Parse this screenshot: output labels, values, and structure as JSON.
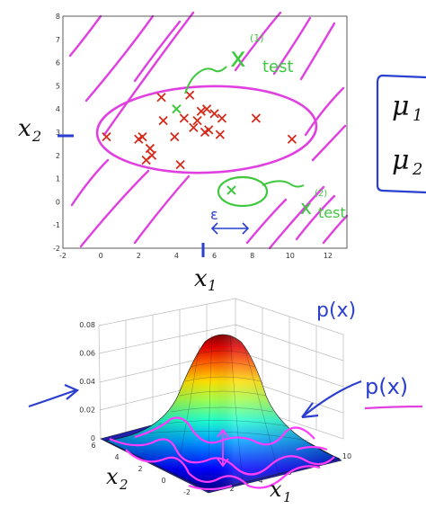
{
  "chart_data": [
    {
      "type": "scatter",
      "xlabel": "x",
      "xlabel_sub": "1",
      "ylabel": "x",
      "ylabel_sub": "2",
      "xlim": [
        -2,
        13
      ],
      "ylim": [
        -2,
        8
      ],
      "x_ticks": [
        -2,
        0,
        2,
        4,
        6,
        8,
        10,
        12
      ],
      "y_ticks": [
        -2,
        -1,
        0,
        1,
        2,
        3,
        4,
        5,
        6,
        7,
        8
      ],
      "grid": false,
      "series": [
        {
          "marker": "x",
          "color": "#d42a1a",
          "points": [
            [
              0.3,
              2.8
            ],
            [
              2.0,
              2.7
            ],
            [
              2.2,
              2.8
            ],
            [
              2.4,
              1.8
            ],
            [
              2.7,
              2.0
            ],
            [
              2.6,
              2.3
            ],
            [
              3.2,
              4.5
            ],
            [
              3.3,
              3.5
            ],
            [
              3.9,
              2.8
            ],
            [
              4.2,
              1.6
            ],
            [
              4.4,
              3.6
            ],
            [
              4.7,
              4.6
            ],
            [
              4.9,
              3.2
            ],
            [
              5.1,
              3.5
            ],
            [
              5.3,
              3.9
            ],
            [
              5.5,
              3.0
            ],
            [
              5.6,
              4.0
            ],
            [
              5.7,
              3.1
            ],
            [
              6.0,
              3.8
            ],
            [
              6.3,
              2.9
            ],
            [
              6.4,
              3.6
            ],
            [
              8.2,
              3.6
            ],
            [
              10.1,
              2.7
            ]
          ]
        },
        {
          "marker": "x",
          "color": "#3fc83f",
          "points": [
            [
              4.0,
              4.0
            ],
            [
              6.9,
              0.5
            ]
          ]
        }
      ],
      "annotations": [
        {
          "text": "x",
          "superscript": "(1)",
          "subscript": "test",
          "color": "#3fc83f"
        },
        {
          "text": "x",
          "superscript": "(2)",
          "subscript": "test",
          "color": "#3fc83f"
        },
        {
          "text": "ε",
          "color": "#2a3fd0"
        }
      ]
    },
    {
      "type": "surface",
      "xlabel": "x",
      "xlabel_sub": "1",
      "ylabel": "x",
      "ylabel_sub": "2",
      "zlim": [
        0,
        0.08
      ],
      "z_ticks": [
        "0",
        "0.02",
        "0.04",
        "0.06",
        "0.08"
      ],
      "x_ticks": [
        "2",
        "4",
        "6",
        "8",
        "10"
      ],
      "y_ticks": [
        "6",
        "4",
        "2",
        "0",
        "-2"
      ],
      "colormap": "jet",
      "annotations": [
        {
          "text": "p(x)",
          "color": "#2a3fd0"
        },
        {
          "text": "p(x)",
          "color": "#2a3fd0"
        }
      ]
    }
  ],
  "side_panel": {
    "mu1": "μ",
    "mu1_sub": "1",
    "mu2": "μ",
    "mu2_sub": "2",
    "border_color": "#2a3fd0"
  },
  "colors": {
    "ink_magenta": "#e040e0",
    "ink_green": "#3fc83f",
    "ink_blue": "#2a3fd0",
    "marker_red": "#d42a1a"
  }
}
